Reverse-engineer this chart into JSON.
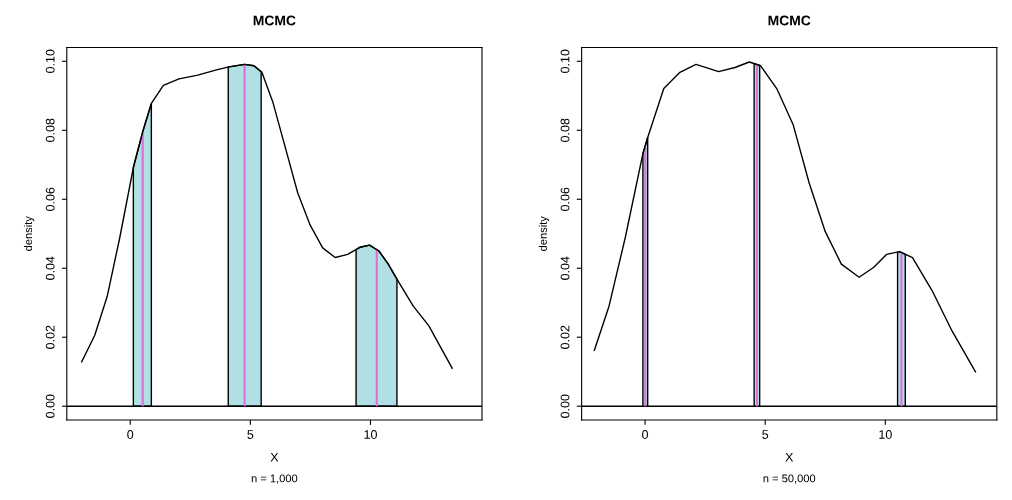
{
  "chart_data": [
    {
      "type": "line",
      "title": "MCMC",
      "xlabel": "X",
      "ylabel": "density",
      "annotations": [
        "n = 1,000"
      ],
      "series": [
        {
          "color": "#000000",
          "x": [
            -2.02,
            -1.48,
            -0.96,
            -0.44,
            0.14,
            0.53,
            0.88,
            1.38,
            2.03,
            2.81,
            3.59,
            4.11,
            4.76,
            5.15,
            5.48,
            5.93,
            6.45,
            6.97,
            7.49,
            8.01,
            8.53,
            9.05,
            9.57,
            9.96,
            10.35,
            10.74,
            11.13,
            11.78,
            12.43,
            12.95,
            13.4
          ],
          "values": [
            0.0129,
            0.0205,
            0.0318,
            0.0487,
            0.0695,
            0.0798,
            0.0878,
            0.093,
            0.0949,
            0.096,
            0.0975,
            0.0984,
            0.0991,
            0.0987,
            0.0968,
            0.0883,
            0.0751,
            0.0619,
            0.0525,
            0.0459,
            0.0431,
            0.044,
            0.0461,
            0.0467,
            0.045,
            0.0412,
            0.0365,
            0.029,
            0.0233,
            0.0167,
            0.011
          ]
        }
      ],
      "xlim": [
        -2.64,
        14.64
      ],
      "ylim": [
        -0.004,
        0.104
      ],
      "xticks": [
        0,
        5,
        10
      ],
      "yticks": [
        {
          "value": 0,
          "label": "0.00"
        },
        {
          "value": 0.02,
          "label": "0.02"
        },
        {
          "value": 0.04,
          "label": "0.04"
        },
        {
          "value": 0.06,
          "label": "0.06"
        },
        {
          "value": 0.08,
          "label": "0.08"
        },
        {
          "value": 0.1,
          "label": "0.10"
        }
      ],
      "bands": [
        {
          "axis": "x",
          "from": 0.13,
          "to": 0.88,
          "color": "#b0dfe5"
        },
        {
          "axis": "x",
          "from": 4.08,
          "to": 5.45,
          "color": "#b0dfe5"
        },
        {
          "axis": "x",
          "from": 9.4,
          "to": 11.1,
          "color": "#b0dfe5"
        }
      ],
      "ref_lines": [
        {
          "axis": "x",
          "value": 0.52,
          "color": "#da70d6"
        },
        {
          "axis": "x",
          "value": 4.76,
          "color": "#da70d6"
        },
        {
          "axis": "x",
          "value": 10.26,
          "color": "#da70d6"
        },
        {
          "axis": "y",
          "value": 0,
          "color": "#000000"
        }
      ]
    },
    {
      "type": "line",
      "title": "MCMC",
      "xlabel": "X",
      "ylabel": "density",
      "annotations": [
        "n = 50,000"
      ],
      "series": [
        {
          "color": "#000000",
          "x": [
            -2.11,
            -1.5,
            -0.83,
            -0.09,
            0.11,
            0.78,
            1.45,
            2.12,
            3.06,
            3.74,
            4.34,
            4.81,
            5.48,
            6.16,
            6.83,
            7.5,
            8.17,
            8.91,
            9.52,
            10.05,
            10.59,
            11.13,
            11.94,
            12.74,
            13.75
          ],
          "values": [
            0.0162,
            0.029,
            0.0487,
            0.0732,
            0.0779,
            0.0921,
            0.0968,
            0.0991,
            0.097,
            0.0982,
            0.0998,
            0.0987,
            0.0921,
            0.0817,
            0.0647,
            0.0506,
            0.0412,
            0.0374,
            0.0403,
            0.044,
            0.0448,
            0.0431,
            0.0336,
            0.0223,
            0.01
          ]
        }
      ],
      "xlim": [
        -2.64,
        14.64
      ],
      "ylim": [
        -0.004,
        0.104
      ],
      "xticks": [
        0,
        5,
        10
      ],
      "yticks": [
        {
          "value": 0,
          "label": "0.00"
        },
        {
          "value": 0.02,
          "label": "0.02"
        },
        {
          "value": 0.04,
          "label": "0.04"
        },
        {
          "value": 0.06,
          "label": "0.06"
        },
        {
          "value": 0.08,
          "label": "0.08"
        },
        {
          "value": 0.1,
          "label": "0.10"
        }
      ],
      "bands": [
        {
          "axis": "x",
          "from": -0.09,
          "to": 0.11,
          "color": "#b0dfe5"
        },
        {
          "axis": "x",
          "from": 4.54,
          "to": 4.77,
          "color": "#b0dfe5"
        },
        {
          "axis": "x",
          "from": 10.51,
          "to": 10.83,
          "color": "#b0dfe5"
        }
      ],
      "ref_lines": [
        {
          "axis": "x",
          "value": 0.01,
          "color": "#da70d6"
        },
        {
          "axis": "x",
          "value": 4.66,
          "color": "#da70d6"
        },
        {
          "axis": "x",
          "value": 10.67,
          "color": "#da70d6"
        },
        {
          "axis": "y",
          "value": 0,
          "color": "#000000"
        }
      ]
    }
  ]
}
